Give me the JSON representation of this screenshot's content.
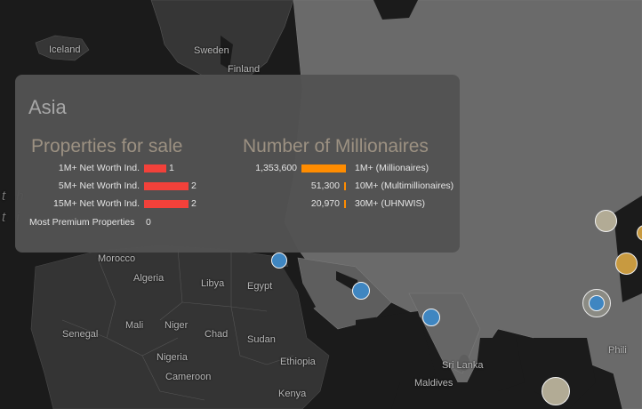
{
  "map": {
    "labels": {
      "iceland": "Iceland",
      "sweden": "Sweden",
      "finland": "Finland",
      "morocco": "Morocco",
      "algeria": "Algeria",
      "libya": "Libya",
      "egypt": "Egypt",
      "mali": "Mali",
      "niger": "Niger",
      "chad": "Chad",
      "sudan": "Sudan",
      "senegal": "Senegal",
      "nigeria": "Nigeria",
      "ethiopia": "Ethiopia",
      "cameroon": "Cameroon",
      "kenya": "Kenya",
      "sri_lanka": "Sri Lanka",
      "maldives": "Maldives",
      "philippines_partial": "Phili",
      "ocean_partial_1": "t h",
      "ocean_partial_2": "t i",
      "colors": {
        "land": "#343434",
        "sea": "#1b1b1b",
        "asia_highlight": "#6c6c6c"
      }
    },
    "markers": [
      {
        "name": "marker-egypt",
        "color": "blue"
      },
      {
        "name": "marker-gulf",
        "color": "blue"
      },
      {
        "name": "marker-india",
        "color": "blue"
      },
      {
        "name": "marker-china-north",
        "color": "beige"
      },
      {
        "name": "marker-korea",
        "color": "gold"
      },
      {
        "name": "marker-shanghai",
        "color": "gold"
      },
      {
        "name": "marker-hongkong",
        "color": "blue"
      },
      {
        "name": "marker-singapore",
        "color": "beige"
      }
    ]
  },
  "panel": {
    "title": "Asia",
    "properties": {
      "title": "Properties for sale",
      "rows": [
        {
          "label": "1M+ Net Worth Ind.",
          "value": "1",
          "count": 1
        },
        {
          "label": "5M+ Net Worth Ind.",
          "value": "2",
          "count": 2
        },
        {
          "label": "15M+ Net Worth Ind.",
          "value": "2",
          "count": 2
        }
      ],
      "premium_label": "Most Premium Properties",
      "premium_value": "0",
      "bar_color": "#f2413a"
    },
    "millionaires": {
      "title": "Number of Millionaires",
      "rows": [
        {
          "value": "1,353,600",
          "label": "1M+ (Millionaires)",
          "count": 1353600
        },
        {
          "value": "51,300",
          "label": "10M+ (Multimillionaires)",
          "count": 51300
        },
        {
          "value": "20,970",
          "label": "30M+ (UHNWIS)",
          "count": 20970
        }
      ],
      "bar_color": "#ff8c00"
    }
  }
}
